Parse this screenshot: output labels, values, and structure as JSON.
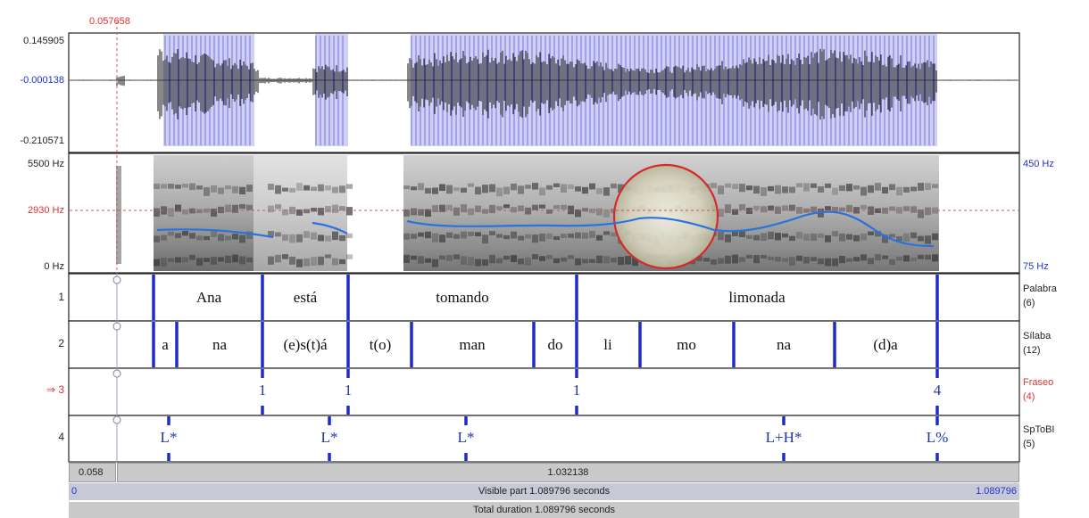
{
  "cursor_time": "0.057658",
  "waveform": {
    "max": "0.145905",
    "zero": "-0.000138",
    "min": "-0.210571"
  },
  "spectrogram": {
    "top_freq": "5500 Hz",
    "cursor_freq": "2930 Hz",
    "bottom_freq": "0 Hz",
    "pitch_top": "450 Hz",
    "pitch_bottom": "75 Hz"
  },
  "tiers": [
    {
      "num": "1",
      "name": "Palabra",
      "count": "(6)"
    },
    {
      "num": "2",
      "name": "Sílaba",
      "count": "(12)"
    },
    {
      "num": "⇒ 3",
      "name": "Fraseo",
      "count": "(4)"
    },
    {
      "num": "4",
      "name": "SpToBI",
      "count": "(5)"
    }
  ],
  "words": [
    "Ana",
    "está",
    "tomando",
    "limonada"
  ],
  "syllables": [
    "a",
    "na",
    "(e)s(t)á",
    "t(o)",
    "man",
    "do",
    "li",
    "mo",
    "na",
    "(d)a"
  ],
  "breaks": [
    "1",
    "1",
    "1",
    "4"
  ],
  "tones": [
    "L*",
    "L*",
    "L*",
    "L+H*",
    "L%"
  ],
  "bottom": {
    "sel_left": "0.058",
    "sel_right": "1.032138",
    "visible_start": "0",
    "visible_label": "Visible part 1.089796 seconds",
    "visible_end": "1.089796",
    "total_label": "Total duration 1.089796 seconds"
  },
  "colors": {
    "accent_blue": "#1f2bc8",
    "pitch": "#2a72e0",
    "cursor": "#e05050",
    "circle": "#d62a2a"
  }
}
